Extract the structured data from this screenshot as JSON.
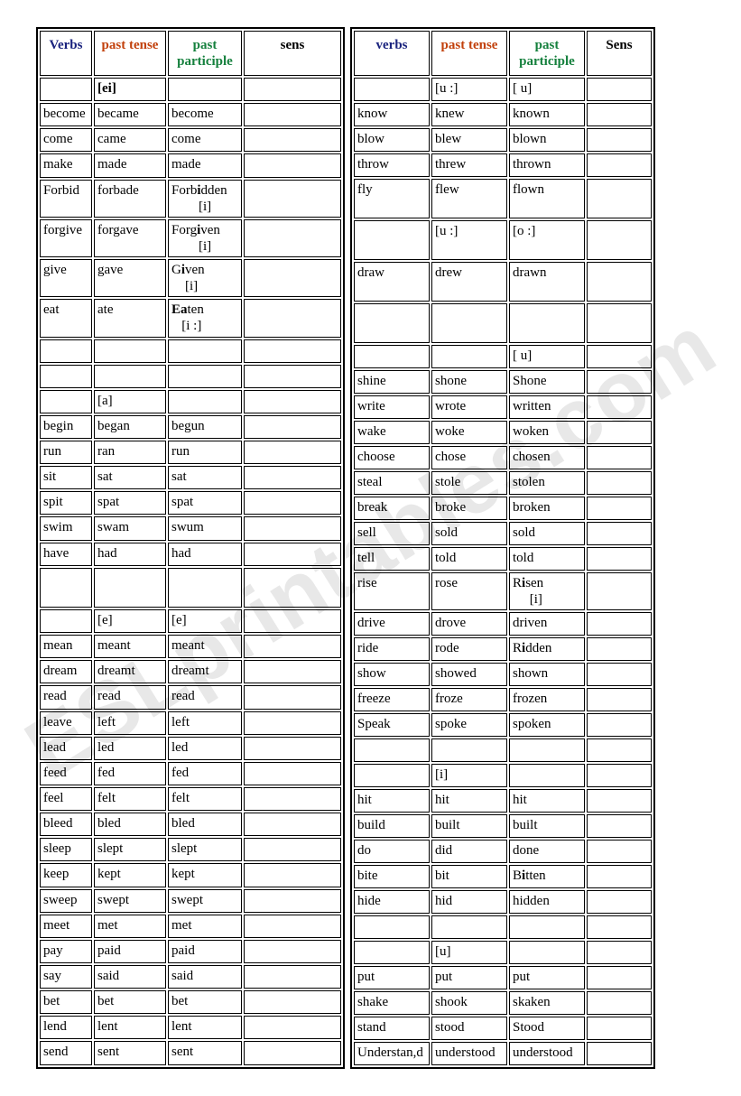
{
  "watermark": "ESLprintables.com",
  "headers": {
    "left": {
      "verbs": "Verbs",
      "past": "past tense",
      "pp": "past participle",
      "sens": "sens"
    },
    "right": {
      "verbs": "verbs",
      "past": "past tense",
      "pp": "past participle",
      "sens": "Sens"
    }
  },
  "left_rows": [
    {
      "v": "",
      "pt": "[ei]",
      "pp": "",
      "s": "",
      "pt_bold": true
    },
    {
      "v": "become",
      "pt": "became",
      "pp": "become",
      "s": ""
    },
    {
      "v": "come",
      "pt": "came",
      "pp": "come",
      "s": ""
    },
    {
      "v": "make",
      "pt": "made",
      "pp": "made",
      "s": ""
    },
    {
      "v": "Forbid",
      "pt": "forbade",
      "pp_html": "Forb<b>i</b>dden<br>&nbsp;&nbsp;&nbsp;&nbsp;&nbsp;&nbsp;&nbsp;&nbsp;[i]",
      "s": ""
    },
    {
      "v": "forgive",
      "pt": "forgave",
      "pp_html": "Forg<b>i</b>ven<br>&nbsp;&nbsp;&nbsp;&nbsp;&nbsp;&nbsp;&nbsp;&nbsp;[i]",
      "s": ""
    },
    {
      "v": "give",
      "pt": "gave",
      "pp_html": "G<b>i</b>ven<br>&nbsp;&nbsp;&nbsp;&nbsp;[i]",
      "s": ""
    },
    {
      "v": "eat",
      "pt": "ate",
      "pp_html": "<b>Ea</b>ten<br>&nbsp;&nbsp;&nbsp;[i :]",
      "s": ""
    },
    {
      "v": "",
      "pt": "",
      "pp": "",
      "s": ""
    },
    {
      "v": "",
      "pt": "",
      "pp": "",
      "s": ""
    },
    {
      "v": "",
      "pt": "[a]",
      "pp": "",
      "s": ""
    },
    {
      "v": "begin",
      "pt": "began",
      "pp": "begun",
      "s": ""
    },
    {
      "v": "run",
      "pt": "ran",
      "pp": "run",
      "s": ""
    },
    {
      "v": "sit",
      "pt": "sat",
      "pp": "sat",
      "s": ""
    },
    {
      "v": "spit",
      "pt": "spat",
      "pp": "spat",
      "s": ""
    },
    {
      "v": "swim",
      "pt": "swam",
      "pp": "swum",
      "s": ""
    },
    {
      "v": "have",
      "pt": "had",
      "pp": "had",
      "s": ""
    },
    {
      "v": "",
      "pt": "",
      "pp": "",
      "s": "",
      "tall": true
    },
    {
      "v": "",
      "pt": "[e]",
      "pp": "[e]",
      "s": ""
    },
    {
      "v": "mean",
      "pt": "meant",
      "pp": "meant",
      "s": ""
    },
    {
      "v": "dream",
      "pt": "dreamt",
      "pp": "dreamt",
      "s": ""
    },
    {
      "v": "read",
      "pt": "read",
      "pp": "read",
      "s": ""
    },
    {
      "v": "leave",
      "pt": "left",
      "pp": "left",
      "s": ""
    },
    {
      "v": "lead",
      "pt": "led",
      "pp": "led",
      "s": ""
    },
    {
      "v": "feed",
      "pt": "fed",
      "pp": "fed",
      "s": ""
    },
    {
      "v": "feel",
      "pt": "felt",
      "pp": "felt",
      "s": ""
    },
    {
      "v": "bleed",
      "pt": "bled",
      "pp": "bled",
      "s": ""
    },
    {
      "v": "sleep",
      "pt": "slept",
      "pp": "slept",
      "s": ""
    },
    {
      "v": "keep",
      "pt": "kept",
      "pp": "kept",
      "s": ""
    },
    {
      "v": "sweep",
      "pt": "swept",
      "pp": "swept",
      "s": ""
    },
    {
      "v": "meet",
      "pt": "met",
      "pp": "met",
      "s": ""
    },
    {
      "v": "pay",
      "pt": "paid",
      "pp": "paid",
      "s": ""
    },
    {
      "v": "say",
      "pt": "said",
      "pp": "said",
      "s": ""
    },
    {
      "v": "bet",
      "pt": "bet",
      "pp": "bet",
      "s": ""
    },
    {
      "v": "lend",
      "pt": "lent",
      "pp": "lent",
      "s": ""
    },
    {
      "v": "send",
      "pt": "sent",
      "pp": "sent",
      "s": ""
    }
  ],
  "right_rows": [
    {
      "v": "",
      "pt": "[u :]",
      "pp": "[   u]",
      "s": ""
    },
    {
      "v": "know",
      "pt": "knew",
      "pp": "known",
      "s": ""
    },
    {
      "v": "blow",
      "pt": "blew",
      "pp": "blown",
      "s": ""
    },
    {
      "v": "throw",
      "pt": "threw",
      "pp": "thrown",
      "s": ""
    },
    {
      "v": "fly",
      "pt": "flew",
      "pp": "flown",
      "s": "",
      "tall": true
    },
    {
      "v": "",
      "pt": "[u :]",
      "pp": "[o :]",
      "s": "",
      "tall": true
    },
    {
      "v": "draw",
      "pt": "drew",
      "pp": "drawn",
      "s": "",
      "tall": true
    },
    {
      "v": "",
      "pt": "",
      "pp": "",
      "s": "",
      "tall": true
    },
    {
      "v": "",
      "pt": "",
      "pp": "[  u]",
      "s": ""
    },
    {
      "v": "shine",
      "pt": "shone",
      "pp": "Shone",
      "s": ""
    },
    {
      "v": "write",
      "pt": "wrote",
      "pp": "written",
      "s": ""
    },
    {
      "v": "wake",
      "pt": "woke",
      "pp": "woken",
      "s": ""
    },
    {
      "v": "choose",
      "pt": "chose",
      "pp": "chosen",
      "s": ""
    },
    {
      "v": "steal",
      "pt": "stole",
      "pp": "stolen",
      "s": ""
    },
    {
      "v": "break",
      "pt": "broke",
      "pp": "broken",
      "s": ""
    },
    {
      "v": "sell",
      "pt": "sold",
      "pp": "sold",
      "s": ""
    },
    {
      "v": "tell",
      "pt": "told",
      "pp": "told",
      "s": ""
    },
    {
      "v": "rise",
      "pt": "rose",
      "pp_html": "R<b>i</b>sen<br>&nbsp;&nbsp;&nbsp;&nbsp;&nbsp;[i]",
      "s": ""
    },
    {
      "v": "drive",
      "pt": "drove",
      "pp": "driven",
      "s": ""
    },
    {
      "v": "ride",
      "pt": "rode",
      "pp_html": "R<b>i</b>dden",
      "s": ""
    },
    {
      "v": "show",
      "pt": "showed",
      "pp": "shown",
      "s": ""
    },
    {
      "v": "freeze",
      "pt": "froze",
      "pp": "frozen",
      "s": ""
    },
    {
      "v": "Speak",
      "pt": "spoke",
      "pp": "spoken",
      "s": ""
    },
    {
      "v": "",
      "pt": "",
      "pp": "",
      "s": ""
    },
    {
      "v": "",
      "pt": "[i]",
      "pp": "",
      "s": ""
    },
    {
      "v": "hit",
      "pt": "hit",
      "pp": "hit",
      "s": ""
    },
    {
      "v": "build",
      "pt": "built",
      "pp": "built",
      "s": ""
    },
    {
      "v": "do",
      "pt": "did",
      "pp": "done",
      "s": ""
    },
    {
      "v": "bite",
      "pt": "bit",
      "pp_html": "B<b>i</b>tten",
      "s": ""
    },
    {
      "v": "hide",
      "pt": "hid",
      "pp": "hidden",
      "s": ""
    },
    {
      "v": "",
      "pt": "",
      "pp": "",
      "s": ""
    },
    {
      "v": "",
      "pt": "[u]",
      "pp": "",
      "s": ""
    },
    {
      "v": "put",
      "pt": "put",
      "pp": "put",
      "s": ""
    },
    {
      "v": "shake",
      "pt": "shook",
      "pp": "skaken",
      "s": ""
    },
    {
      "v": "stand",
      "pt": "stood",
      "pp": "Stood",
      "s": ""
    },
    {
      "v": "Understan,d",
      "pt": "understood",
      "pp": "understood",
      "s": ""
    }
  ]
}
